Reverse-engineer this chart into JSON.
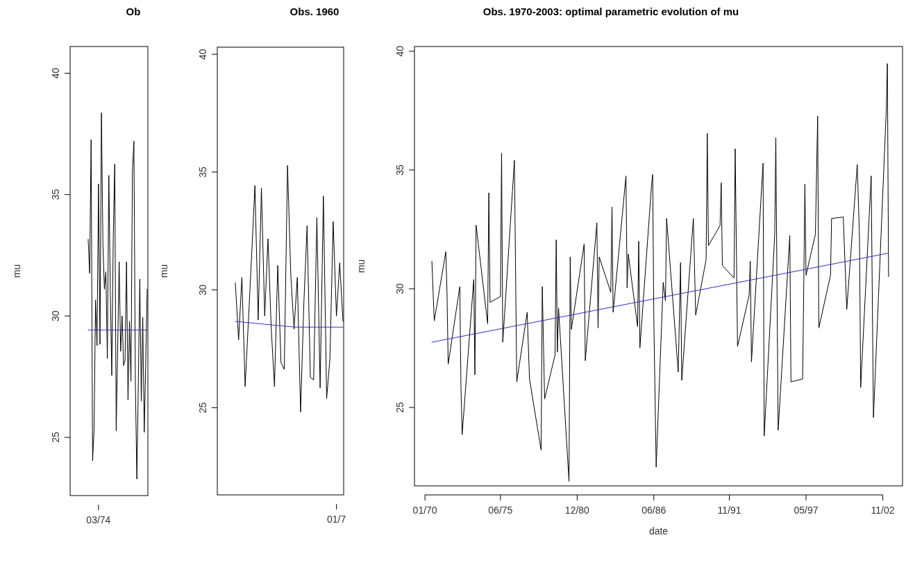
{
  "chart_data": [
    {
      "type": "line",
      "title": "Ob",
      "ylabel": "mu",
      "ylim": [
        22.6,
        41.1
      ],
      "yticks": [
        25,
        30,
        35,
        40
      ],
      "categories": [
        null,
        null,
        null,
        null,
        null,
        null,
        null,
        "03/74",
        null,
        null,
        null,
        null,
        null,
        null,
        null,
        null,
        null,
        null,
        null,
        null,
        null,
        null,
        null,
        null,
        null,
        null,
        null,
        null,
        null,
        null,
        null,
        null,
        null,
        null,
        null,
        null,
        null,
        null,
        null,
        null,
        null
      ],
      "series": [
        {
          "color": "#000000",
          "values": [
            33.16,
            31.76,
            37.26,
            24.04,
            25.33,
            30.65,
            28.78,
            35.44,
            28.83,
            38.37,
            32.93,
            31.11,
            31.82,
            28.25,
            35.79,
            31.0,
            27.55,
            33.22,
            36.26,
            25.27,
            28.72,
            32.23,
            28.54,
            30.0,
            27.96,
            28.19,
            32.23,
            26.55,
            29.77,
            27.31,
            35.97,
            37.2,
            27.2,
            23.28,
            27.25,
            31.52,
            26.49,
            29.94,
            25.21,
            28.02,
            31.11
          ]
        },
        {
          "color": "#2e2eb8",
          "values": [
            29.42,
            29.42,
            29.42,
            29.42,
            29.42,
            29.42,
            29.42,
            29.42,
            29.42,
            29.42,
            29.42,
            29.42,
            29.42,
            29.42,
            29.42,
            29.42,
            29.42,
            29.42,
            29.42,
            29.42,
            29.42,
            29.42,
            29.42,
            29.42,
            29.42,
            29.42,
            29.42,
            29.42,
            29.42,
            29.42,
            29.42,
            29.42,
            29.42,
            29.42,
            29.42,
            29.42,
            29.42,
            29.42,
            29.42,
            29.42,
            29.42
          ]
        }
      ]
    },
    {
      "type": "line",
      "title": "Obs. 1960",
      "ylabel": "mu",
      "ylim": [
        21.3,
        40.3
      ],
      "yticks": [
        25,
        30,
        35,
        40
      ],
      "categories": [
        null,
        null,
        null,
        null,
        null,
        null,
        null,
        null,
        null,
        null,
        null,
        null,
        null,
        null,
        null,
        null,
        null,
        null,
        null,
        null,
        null,
        null,
        null,
        null,
        null,
        null,
        null,
        null,
        null,
        null,
        null,
        "01/7",
        null,
        null
      ],
      "series": [
        {
          "color": "#000000",
          "values": [
            30.3,
            27.88,
            30.53,
            25.9,
            28.67,
            31.49,
            34.43,
            28.72,
            34.32,
            28.89,
            32.17,
            28.38,
            25.9,
            31.04,
            26.91,
            26.63,
            35.28,
            30.64,
            28.33,
            30.53,
            24.82,
            29.4,
            32.73,
            26.29,
            26.18,
            33.07,
            25.84,
            33.98,
            25.39,
            27.08,
            32.9,
            28.89,
            31.15,
            28.67
          ]
        },
        {
          "color": "#2e2eb8",
          "values": [
            28.66,
            28.65,
            28.64,
            28.62,
            28.61,
            28.6,
            28.58,
            28.57,
            28.56,
            28.54,
            28.53,
            28.52,
            28.5,
            28.49,
            28.48,
            28.46,
            28.45,
            28.44,
            28.42,
            28.42,
            28.42,
            28.42,
            28.42,
            28.42,
            28.42,
            28.42,
            28.42,
            28.42,
            28.42,
            28.42,
            28.42,
            28.42,
            28.42,
            28.42
          ]
        }
      ]
    },
    {
      "type": "line",
      "title": "Obs. 1970-2003: optimal parametric evolution of mu",
      "xlabel": "date",
      "ylabel": "mu",
      "ylim": [
        21.7,
        40.2
      ],
      "yticks": [
        25,
        30,
        35,
        40
      ],
      "xlim": [
        "1969-04",
        "2004-04"
      ],
      "xticks": [
        {
          "value": "1970-01",
          "label": "01/70"
        },
        {
          "value": "1975-06",
          "label": "06/75"
        },
        {
          "value": "1980-12",
          "label": "12/80"
        },
        {
          "value": "1986-06",
          "label": "06/86"
        },
        {
          "value": "1991-11",
          "label": "11/91"
        },
        {
          "value": "1997-05",
          "label": "05/97"
        },
        {
          "value": "2002-11",
          "label": "11/02"
        }
      ],
      "series": [
        {
          "color": "#000000",
          "x": [
            "1970-07",
            "1970-09",
            "1971-07",
            "1971-08",
            "1971-09",
            "1972-07",
            "1972-08",
            "1972-09",
            "1973-07",
            "1973-08",
            "1973-09",
            "1974-07",
            "1974-08",
            "1974-09",
            "1975-06",
            "1975-07",
            "1975-08",
            "1976-06",
            "1976-08",
            "1977-05",
            "1977-07",
            "1978-05",
            "1978-06",
            "1978-08",
            "1979-05",
            "1979-06",
            "1979-07",
            "1979-08",
            "1980-05",
            "1980-06",
            "1980-07",
            "1981-06",
            "1981-07",
            "1982-05",
            "1982-06",
            "1982-07",
            "1983-05",
            "1983-06",
            "1983-07",
            "1984-06",
            "1984-07",
            "1984-08",
            "1985-04",
            "1985-05",
            "1985-06",
            "1986-04",
            "1986-05",
            "1986-06",
            "1986-08",
            "1987-02",
            "1987-04",
            "1987-05",
            "1988-03",
            "1988-05",
            "1988-06",
            "1989-04",
            "1989-06",
            "1990-03",
            "1990-04",
            "1990-05",
            "1991-03",
            "1991-04",
            "1991-05",
            "1992-03",
            "1992-04",
            "1992-06",
            "1993-04",
            "1993-05",
            "1993-06",
            "1994-04",
            "1994-05",
            "1995-02",
            "1995-03",
            "1995-05",
            "1996-03",
            "1996-04",
            "1997-02",
            "1997-04",
            "1997-05",
            "1998-01",
            "1998-03",
            "1998-04",
            "1999-02",
            "1999-03",
            "2000-01",
            "2000-04",
            "2001-01",
            "2001-03",
            "2001-04",
            "2002-01",
            "2002-03",
            "2003-02",
            "2003-03",
            "2003-04"
          ],
          "values": [
            31.16,
            28.65,
            31.56,
            29.85,
            26.82,
            30.09,
            25.84,
            23.86,
            30.39,
            26.38,
            32.68,
            28.53,
            34.04,
            29.43,
            29.67,
            35.71,
            27.75,
            35.41,
            26.08,
            29.01,
            26.2,
            23.21,
            30.09,
            25.36,
            27.21,
            32.06,
            27.33,
            29.19,
            21.89,
            31.34,
            28.29,
            31.88,
            26.97,
            32.78,
            28.35,
            31.34,
            29.85,
            33.44,
            29.01,
            34.75,
            30.03,
            31.46,
            28.41,
            32.0,
            27.51,
            34.34,
            34.81,
            28.71,
            22.49,
            30.27,
            29.49,
            32.96,
            26.5,
            31.1,
            26.14,
            32.96,
            28.89,
            31.22,
            36.55,
            31.82,
            32.66,
            34.46,
            30.98,
            30.45,
            35.89,
            27.57,
            29.73,
            31.16,
            26.92,
            35.29,
            23.8,
            32.3,
            36.37,
            24.04,
            32.24,
            26.08,
            26.2,
            34.4,
            30.57,
            32.3,
            37.27,
            28.35,
            30.57,
            32.96,
            33.02,
            29.13,
            35.23,
            32.18,
            25.84,
            34.75,
            24.58,
            37.57,
            39.48,
            30.51
          ]
        },
        {
          "color": "#2e2eb8",
          "x": [
            "1970-07",
            "2003-04"
          ],
          "values": [
            27.75,
            31.5
          ]
        }
      ]
    }
  ]
}
